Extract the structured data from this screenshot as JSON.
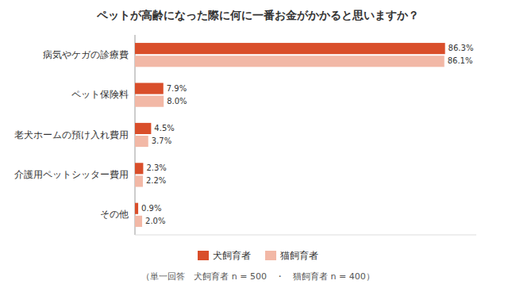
{
  "chart_data": {
    "type": "bar",
    "orientation": "horizontal",
    "title": "ペットが高齢になった際に何に一番お金がかかると思いますか？",
    "categories": [
      "病気やケガの診療費",
      "ペット保険料",
      "老犬ホームの預け入れ費用",
      "介護用ペットシッター費用",
      "その他"
    ],
    "series": [
      {
        "name": "犬飼育者",
        "color": "#d94e2a",
        "values": [
          86.3,
          7.9,
          4.5,
          2.3,
          0.9
        ],
        "value_labels": [
          "86.3%",
          "7.9%",
          "4.5%",
          "2.3%",
          "0.9%"
        ]
      },
      {
        "name": "猫飼育者",
        "color": "#f2b8a6",
        "values": [
          86.1,
          8.0,
          3.7,
          2.2,
          2.0
        ],
        "value_labels": [
          "86.1%",
          "8.0%",
          "3.7%",
          "2.2%",
          "2.0%"
        ]
      }
    ],
    "xlim": [
      0,
      95
    ],
    "tick_labels": "y",
    "data_labels": true,
    "grid": false,
    "legend": "bottom",
    "annotations": [
      "（単一回答　犬飼育者 n = 500　・　猫飼育者 n = 400）"
    ]
  }
}
